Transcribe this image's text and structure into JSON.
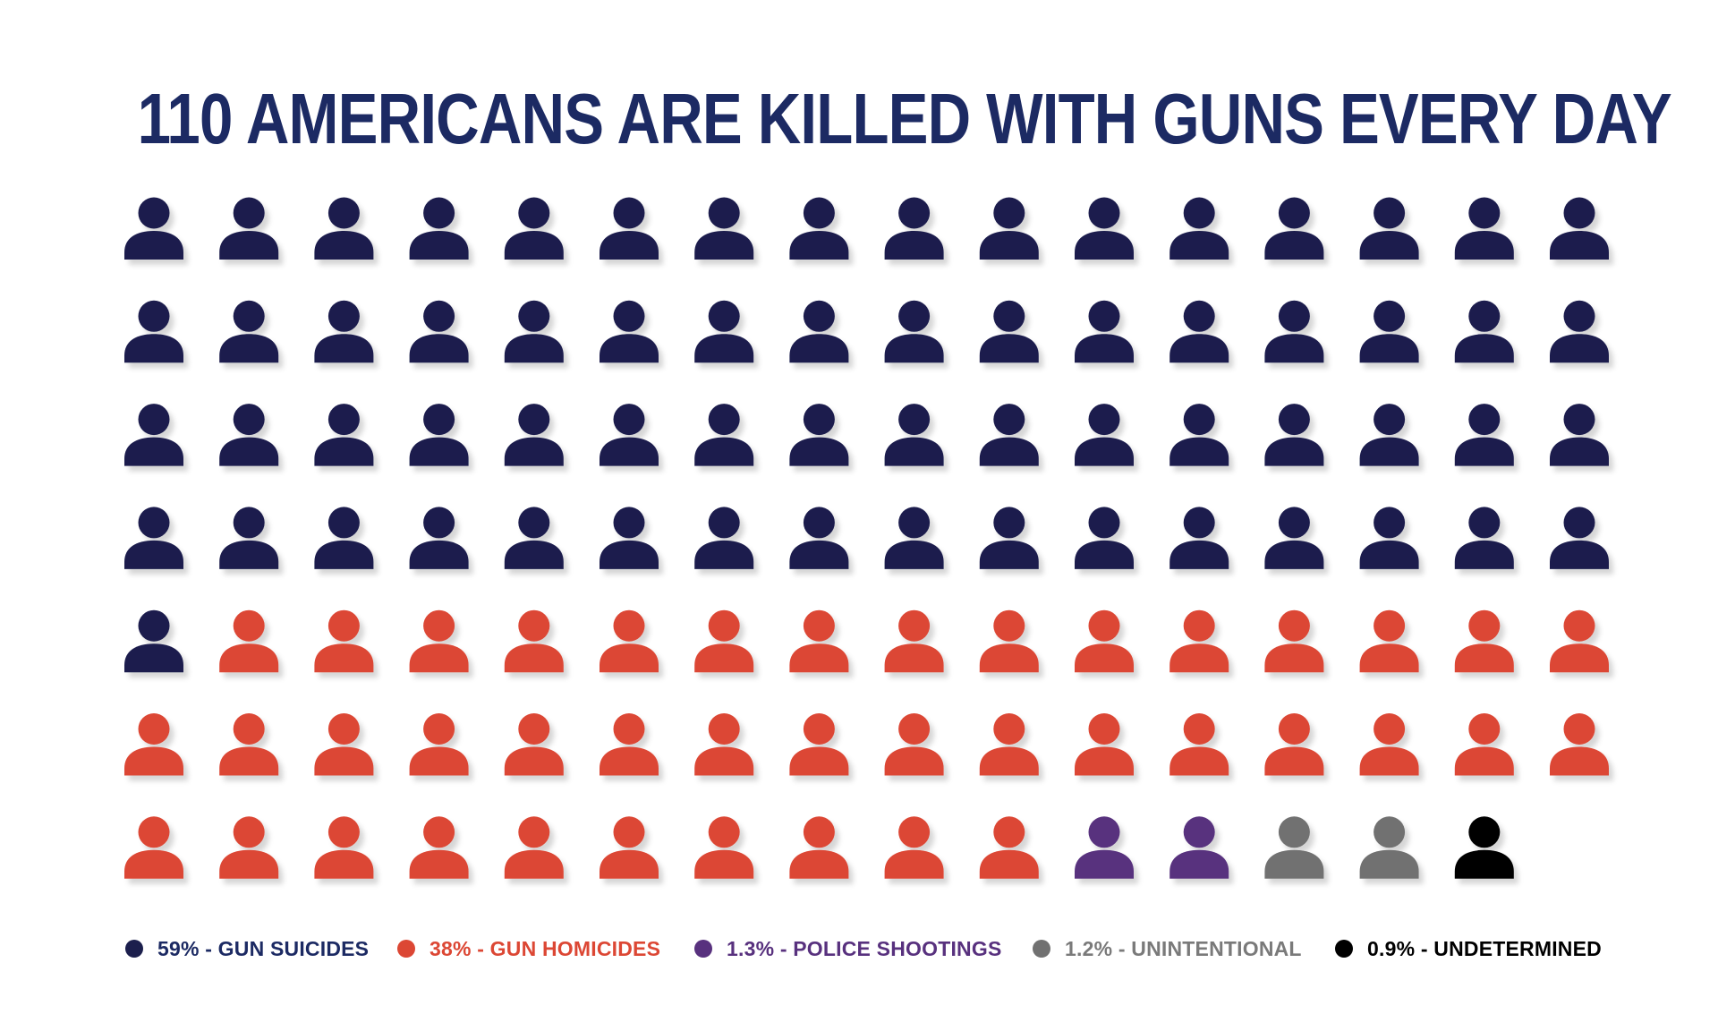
{
  "title": "110 AMERICANS ARE KILLED WITH GUNS EVERY DAY",
  "chart_data": {
    "type": "pictogram",
    "total": 110,
    "icons_per_row": 16,
    "rows": 7,
    "icon": "person-icon",
    "title": "110 AMERICANS ARE KILLED WITH GUNS EVERY DAY",
    "series": [
      {
        "name": "GUN SUICIDES",
        "label": "59% - GUN SUICIDES",
        "percent": 59,
        "count": 65,
        "color": "#1c1f4d"
      },
      {
        "name": "GUN HOMICIDES",
        "label": "38% - GUN HOMICIDES",
        "percent": 38,
        "count": 41,
        "color": "#dc4734"
      },
      {
        "name": "POLICE SHOOTINGS",
        "label": "1.3% - POLICE SHOOTINGS",
        "percent": 1.3,
        "count": 2,
        "color": "#58317e"
      },
      {
        "name": "UNINTENTIONAL",
        "label": "1.2% - UNINTENTIONAL",
        "percent": 1.2,
        "count": 2,
        "color": "#717171"
      },
      {
        "name": "UNDETERMINED",
        "label": "0.9% - UNDETERMINED",
        "percent": 0.9,
        "count": 1,
        "color": "#000000"
      }
    ],
    "legend_position": "bottom"
  },
  "legend_text_colors": [
    "#1c2a63",
    "#dc4734",
    "#58317e",
    "#7a7a7a",
    "#000000"
  ]
}
